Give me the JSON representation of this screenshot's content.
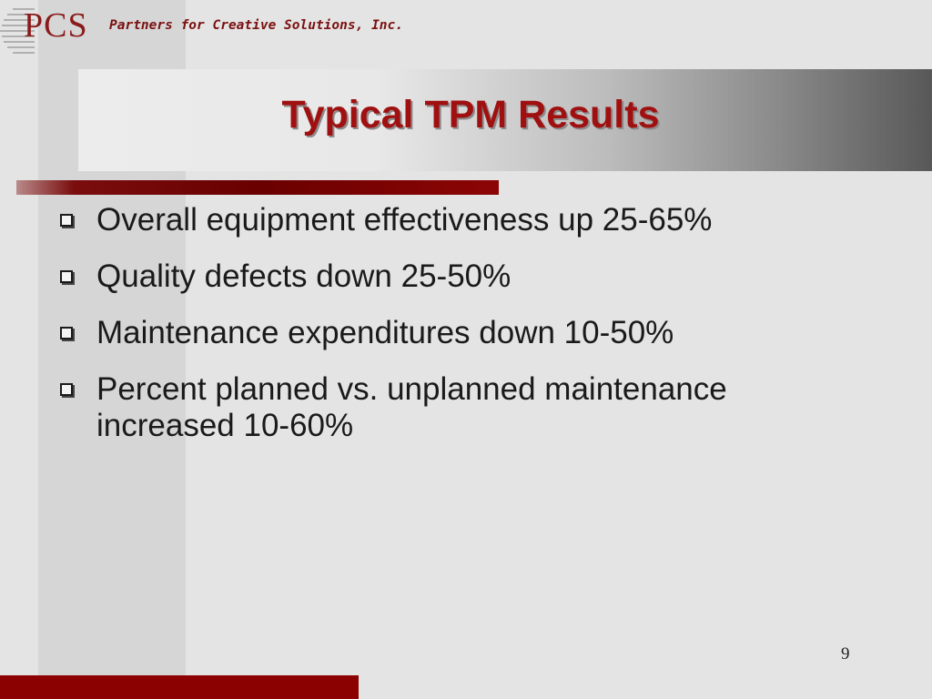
{
  "logo": {
    "text": "PCS"
  },
  "tagline": "Partners for Creative Solutions, Inc.",
  "title": "Typical TPM Results",
  "bullets": [
    "Overall equipment effectiveness up 25-65%",
    "Quality defects down 25-50%",
    "Maintenance expenditures down 10-50%",
    "Percent planned vs. unplanned maintenance increased 10-60%"
  ],
  "page_number": "9",
  "colors": {
    "accent": "#8b0000",
    "title": "#a01010",
    "text": "#1a1a1a"
  }
}
